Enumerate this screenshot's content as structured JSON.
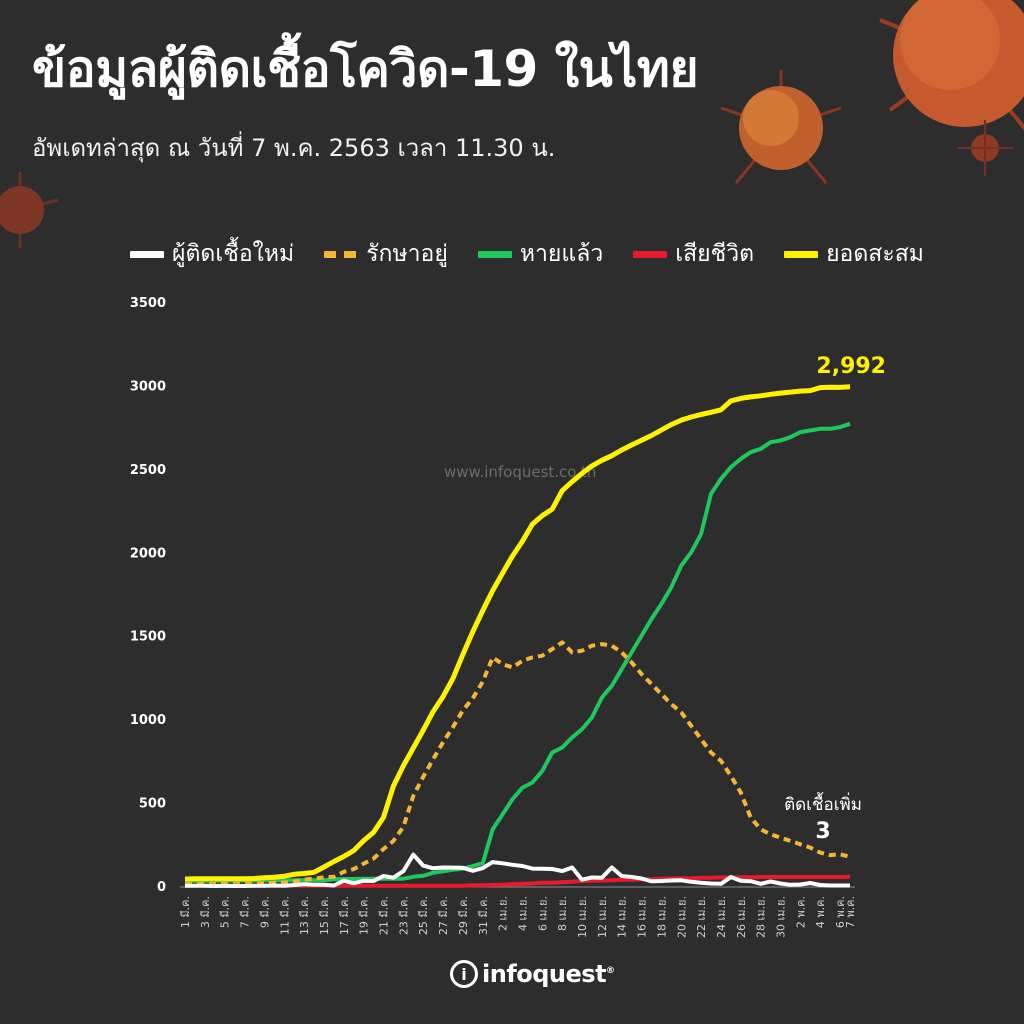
{
  "header": {
    "title": "ข้อมูลผู้ติดเชื้อโควิด-19 ในไทย",
    "subtitle": "อัพเดทล่าสุด ณ วันที่  7 พ.ค. 2563 เวลา 11.30 น."
  },
  "watermark": "www.infoquest.co.th",
  "logo": {
    "mark": "i",
    "text": "infoquest"
  },
  "annotations": {
    "total_label": "2,992",
    "new_label": "ติดเชื้อเพิ่ม",
    "new_value": "3"
  },
  "colors": {
    "background": "#2e2d2e",
    "new": "#ffffff",
    "active": "#f5b731",
    "recovered": "#1ec85a",
    "deaths": "#e8192c",
    "total": "#fff200",
    "virus": "#c0502a"
  },
  "chart_data": {
    "type": "line",
    "title": "ข้อมูลผู้ติดเชื้อโควิด-19 ในไทย",
    "ylim": [
      0,
      3500
    ],
    "yticks": [
      0,
      500,
      1000,
      1500,
      2000,
      2500,
      3000,
      3500
    ],
    "legend_position": "top",
    "grid": false,
    "xtick_labels": [
      "1 มี.ค.",
      "3 มี.ค.",
      "5 มี.ค.",
      "7 มี.ค.",
      "9 มี.ค.",
      "11 มี.ค.",
      "13 มี.ค.",
      "15 มี.ค.",
      "17 มี.ค.",
      "19 มี.ค.",
      "21 มี.ค.",
      "23 มี.ค.",
      "25 มี.ค.",
      "27 มี.ค.",
      "29 มี.ค.",
      "31 มี.ค.",
      "2 เม.ย.",
      "4 เม.ย.",
      "6 เม.ย.",
      "8 เม.ย.",
      "10 เม.ย.",
      "12 เม.ย.",
      "14 เม.ย.",
      "16 เม.ย.",
      "18 เม.ย.",
      "20 เม.ย.",
      "22 เม.ย.",
      "24 เม.ย.",
      "26 เม.ย.",
      "28 เม.ย.",
      "30 เม.ย.",
      "2 พ.ค.",
      "4 พ.ค.",
      "6 พ.ค.",
      "7 พ.ค."
    ],
    "xtick_index": [
      0,
      2,
      4,
      6,
      8,
      10,
      12,
      14,
      16,
      18,
      20,
      22,
      24,
      26,
      28,
      30,
      32,
      34,
      36,
      38,
      40,
      42,
      44,
      46,
      48,
      50,
      52,
      54,
      56,
      58,
      60,
      62,
      64,
      66,
      67
    ],
    "series": [
      {
        "name": "ผู้ติดเชื้อใหม่",
        "style": "solid",
        "color_key": "new",
        "values": [
          2,
          1,
          1,
          0,
          1,
          0,
          0,
          1,
          2,
          3,
          2,
          6,
          11,
          8,
          7,
          3,
          32,
          16,
          32,
          30,
          60,
          50,
          89,
          188,
          122,
          106,
          111,
          110,
          109,
          91,
          107,
          143,
          136,
          127,
          120,
          104,
          103,
          102,
          89,
          111,
          38,
          51,
          50,
          111,
          60,
          54,
          45,
          28,
          30,
          33,
          34,
          25,
          19,
          15,
          13,
          54,
          32,
          29,
          13,
          27,
          15,
          7,
          9,
          18,
          6,
          3,
          3,
          3
        ]
      },
      {
        "name": "รักษาอยู่",
        "style": "dashed",
        "color_key": "active",
        "values": [
          10,
          11,
          12,
          12,
          13,
          13,
          14,
          15,
          16,
          19,
          21,
          27,
          38,
          45,
          52,
          55,
          85,
          101,
          134,
          164,
          222,
          270,
          355,
          540,
          654,
          760,
          862,
          953,
          1053,
          1125,
          1225,
          1370,
          1330,
          1310,
          1350,
          1370,
          1380,
          1420,
          1460,
          1400,
          1410,
          1440,
          1450,
          1440,
          1400,
          1340,
          1270,
          1210,
          1150,
          1090,
          1040,
          960,
          880,
          800,
          750,
          660,
          560,
          410,
          340,
          310,
          290,
          270,
          250,
          230,
          200,
          185,
          190,
          175
        ]
      },
      {
        "name": "หายแล้ว",
        "style": "solid",
        "color_key": "recovered",
        "values": [
          31,
          31,
          31,
          31,
          33,
          33,
          33,
          33,
          33,
          34,
          34,
          34,
          35,
          35,
          35,
          41,
          42,
          42,
          44,
          44,
          44,
          44,
          44,
          55,
          61,
          79,
          88,
          97,
          104,
          119,
          137,
          340,
          430,
          520,
          590,
          620,
          690,
          800,
          830,
          890,
          940,
          1010,
          1130,
          1200,
          1300,
          1400,
          1500,
          1600,
          1690,
          1790,
          1920,
          2000,
          2110,
          2350,
          2440,
          2510,
          2560,
          2600,
          2620,
          2660,
          2670,
          2690,
          2720,
          2730,
          2740,
          2740,
          2750,
          2770
        ]
      },
      {
        "name": "เสียชีวิต",
        "style": "solid",
        "color_key": "deaths",
        "values": [
          1,
          1,
          1,
          1,
          1,
          1,
          1,
          1,
          1,
          1,
          1,
          1,
          1,
          1,
          1,
          1,
          1,
          1,
          1,
          1,
          1,
          1,
          1,
          1,
          1,
          1,
          1,
          1,
          1,
          4,
          5,
          6,
          7,
          10,
          12,
          15,
          19,
          20,
          23,
          26,
          30,
          32,
          33,
          35,
          37,
          38,
          40,
          41,
          43,
          45,
          46,
          47,
          49,
          50,
          51,
          51,
          52,
          53,
          54,
          54,
          54,
          54,
          54,
          54,
          54,
          54,
          54,
          55
        ]
      },
      {
        "name": "ยอดสะสม",
        "style": "solid",
        "color_key": "total",
        "values": [
          42,
          43,
          43,
          43,
          43,
          43,
          43,
          45,
          50,
          53,
          59,
          70,
          75,
          82,
          114,
          147,
          177,
          212,
          272,
          322,
          411,
          599,
          721,
          827,
          934,
          1045,
          1136,
          1245,
          1388,
          1524,
          1651,
          1771,
          1875,
          1978,
          2067,
          2169,
          2220,
          2258,
          2369,
          2423,
          2473,
          2518,
          2551,
          2579,
          2613,
          2643,
          2672,
          2700,
          2733,
          2765,
          2792,
          2811,
          2826,
          2839,
          2854,
          2907,
          2922,
          2931,
          2938,
          2947,
          2954,
          2960,
          2966,
          2969,
          2987,
          2989,
          2988,
          2992
        ]
      }
    ]
  }
}
